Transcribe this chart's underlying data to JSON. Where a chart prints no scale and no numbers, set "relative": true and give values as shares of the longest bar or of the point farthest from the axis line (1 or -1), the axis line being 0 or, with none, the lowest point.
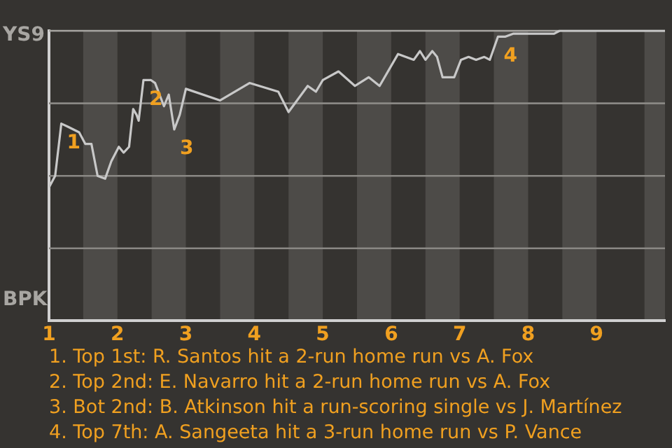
{
  "chart_data": {
    "type": "line",
    "relative": true,
    "x": [
      1.0,
      1.09,
      1.18,
      1.27,
      1.44,
      1.53,
      1.62,
      1.71,
      1.82,
      1.91,
      2.02,
      2.09,
      2.17,
      2.23,
      2.28,
      2.31,
      2.38,
      2.49,
      2.55,
      2.68,
      2.75,
      2.83,
      2.91,
      3.0,
      3.5,
      3.93,
      4.35,
      4.5,
      4.78,
      4.9,
      5.0,
      5.23,
      5.47,
      5.67,
      5.83,
      6.1,
      6.33,
      6.42,
      6.5,
      6.6,
      6.67,
      6.75,
      6.92,
      7.02,
      7.13,
      7.24,
      7.36,
      7.44,
      7.56,
      7.67,
      7.78,
      8.0,
      8.38,
      8.46,
      10.0
    ],
    "series": [
      {
        "color": "#c8c8c8",
        "values": [
          0.46,
          0.5,
          0.68,
          0.67,
          0.65,
          0.61,
          0.61,
          0.5,
          0.49,
          0.55,
          0.6,
          0.58,
          0.6,
          0.73,
          0.71,
          0.69,
          0.83,
          0.83,
          0.82,
          0.74,
          0.78,
          0.66,
          0.71,
          0.8,
          0.76,
          0.82,
          0.79,
          0.72,
          0.81,
          0.79,
          0.83,
          0.86,
          0.81,
          0.84,
          0.81,
          0.92,
          0.9,
          0.93,
          0.9,
          0.93,
          0.91,
          0.84,
          0.84,
          0.9,
          0.91,
          0.9,
          0.91,
          0.9,
          0.98,
          0.98,
          0.99,
          0.99,
          0.99,
          1.0,
          1.0
        ]
      }
    ],
    "xlim": [
      1,
      10
    ],
    "xticks": [
      1,
      2,
      3,
      4,
      5,
      6,
      7,
      8,
      9
    ],
    "legend": false,
    "ref_lines": [
      {
        "axis": "y",
        "value": 0.25,
        "color": "#8a8884"
      },
      {
        "axis": "y",
        "value": 0.5,
        "color": "#8a8884"
      },
      {
        "axis": "y",
        "value": 0.75,
        "color": "#8a8884"
      },
      {
        "axis": "y",
        "value": 1,
        "color": "#a8a6a2"
      }
    ],
    "marker": "none",
    "line_style": "solid",
    "bands": [
      {
        "axis": "x",
        "from": 1.5,
        "to": 2,
        "color": "#4d4b48"
      },
      {
        "axis": "x",
        "from": 2.5,
        "to": 3,
        "color": "#4d4b48"
      },
      {
        "axis": "x",
        "from": 3.5,
        "to": 4,
        "color": "#4d4b48"
      },
      {
        "axis": "x",
        "from": 4.5,
        "to": 5,
        "color": "#4d4b48"
      },
      {
        "axis": "x",
        "from": 5.5,
        "to": 6,
        "color": "#4d4b48"
      },
      {
        "axis": "x",
        "from": 6.5,
        "to": 7,
        "color": "#4d4b48"
      },
      {
        "axis": "x",
        "from": 7.5,
        "to": 8,
        "color": "#4d4b48"
      },
      {
        "axis": "x",
        "from": 8.5,
        "to": 9,
        "color": "#4d4b48"
      },
      {
        "axis": "x",
        "from": 9.7,
        "to": 10,
        "color": "#4d4b48"
      }
    ],
    "annotations": [
      "YS9",
      "BPK",
      {
        "text": "1",
        "x": 1.18,
        "y": 0.68
      },
      {
        "text": "2",
        "x": 2.38,
        "y": 0.83
      },
      {
        "text": "3",
        "x": 2.83,
        "y": 0.66
      },
      {
        "text": "4",
        "x": 7.56,
        "y": 0.98
      },
      "1. Top 1st: R. Santos hit a 2-run home run vs A. Fox",
      "2. Top 2nd: E. Navarro hit a 2-run home run vs A. Fox",
      "3. Bot 2nd: B. Atkinson hit a run-scoring single vs J. Martínez",
      "4. Top 7th: A. Sangeeta hit a 3-run home run vs P. Vance"
    ]
  }
}
